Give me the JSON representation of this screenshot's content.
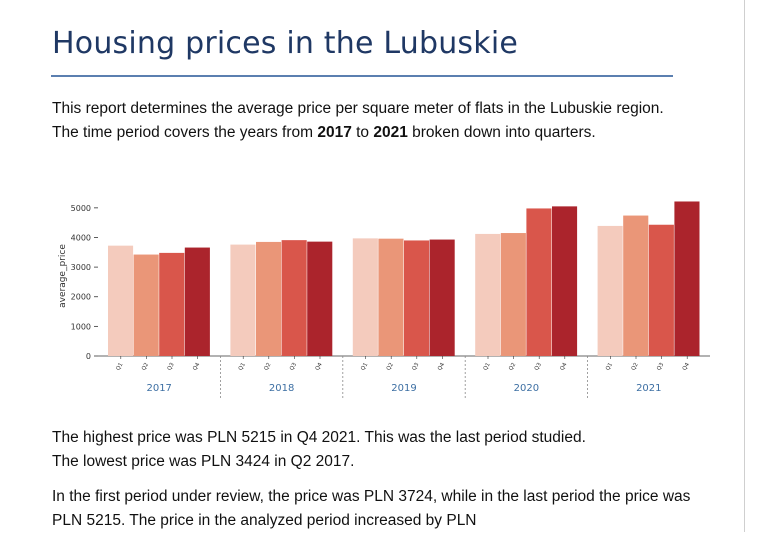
{
  "document": {
    "title": "Housing prices in the Lubuskie",
    "intro": {
      "part1": "This report determines the average price per square meter of flats in the Lubuskie region. The time period covers the years from ",
      "year_start": "2017",
      "part2": " to ",
      "year_end": "2021",
      "part3": " broken down into quarters."
    },
    "summary_line1": "The highest price was PLN 5215 in Q4 2021. This was the last period studied.",
    "summary_line2": "The lowest price was PLN 3424 in Q2 2017.",
    "first_last": "In the first period under review, the price was PLN 3724, while in the last period the price was PLN 5215. The price in the analyzed period increased by PLN"
  },
  "chart_data": {
    "type": "bar",
    "ylabel": "average_price",
    "ylim": [
      0,
      5400
    ],
    "yticks": [
      0,
      1000,
      2000,
      3000,
      4000,
      5000
    ],
    "groups": [
      "2017",
      "2018",
      "2019",
      "2020",
      "2021"
    ],
    "quarters": [
      "Q1",
      "Q2",
      "Q3",
      "Q4"
    ],
    "colors": [
      "#f4cbbd",
      "#ea9678",
      "#d9564b",
      "#ab242c"
    ],
    "group_label_color": "#3d6fa3",
    "grid": false,
    "values": [
      [
        3724,
        3424,
        3480,
        3660
      ],
      [
        3760,
        3850,
        3910,
        3860
      ],
      [
        3970,
        3960,
        3900,
        3930
      ],
      [
        4120,
        4150,
        4980,
        5050
      ],
      [
        4390,
        4740,
        4430,
        5215
      ]
    ]
  }
}
